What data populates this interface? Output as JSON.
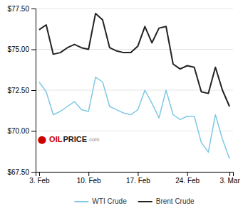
{
  "chart_data": {
    "type": "line",
    "categories": [
      "3. Feb",
      null,
      null,
      null,
      null,
      null,
      null,
      "10. Feb",
      null,
      null,
      null,
      null,
      null,
      null,
      "17. Feb",
      null,
      null,
      null,
      null,
      null,
      null,
      "24. Feb",
      null,
      null,
      null,
      null,
      null,
      "3. Mar"
    ],
    "series": [
      {
        "name": "WTI Crude",
        "color": "#7ec8e3",
        "values": [
          73.0,
          72.4,
          71.0,
          71.2,
          71.5,
          71.8,
          71.3,
          71.2,
          73.3,
          73.0,
          71.5,
          71.3,
          71.1,
          71.0,
          71.3,
          72.5,
          71.7,
          70.8,
          72.5,
          71.0,
          70.7,
          70.9,
          70.9,
          69.3,
          68.7,
          71.0,
          69.5,
          68.3
        ]
      },
      {
        "name": "Brent Crude",
        "color": "#222222",
        "values": [
          76.2,
          76.5,
          74.7,
          74.8,
          75.1,
          75.3,
          75.1,
          75.0,
          77.2,
          76.8,
          75.1,
          74.9,
          74.8,
          74.8,
          75.2,
          76.4,
          75.4,
          76.3,
          76.4,
          74.1,
          73.8,
          74.0,
          73.9,
          72.4,
          72.3,
          73.9,
          72.5,
          71.5
        ]
      }
    ],
    "ylim": [
      67.5,
      77.5
    ],
    "yticks": [
      {
        "value": 67.5,
        "label": "$67.50"
      },
      {
        "value": 70.0,
        "label": "$70.00"
      },
      {
        "value": 72.5,
        "label": "$72.50"
      },
      {
        "value": 75.0,
        "label": "$75.00"
      },
      {
        "value": 77.5,
        "label": "$77.50"
      }
    ],
    "grid": true,
    "legend": "bottom",
    "annotations": [
      {
        "text": "⬤",
        "color": "#cc0000"
      },
      {
        "text": "OIL",
        "color": "#cc0000"
      },
      {
        "text": "PRICE",
        "color": "#222222"
      },
      {
        "text": ".com",
        "color": "#888888"
      }
    ]
  }
}
